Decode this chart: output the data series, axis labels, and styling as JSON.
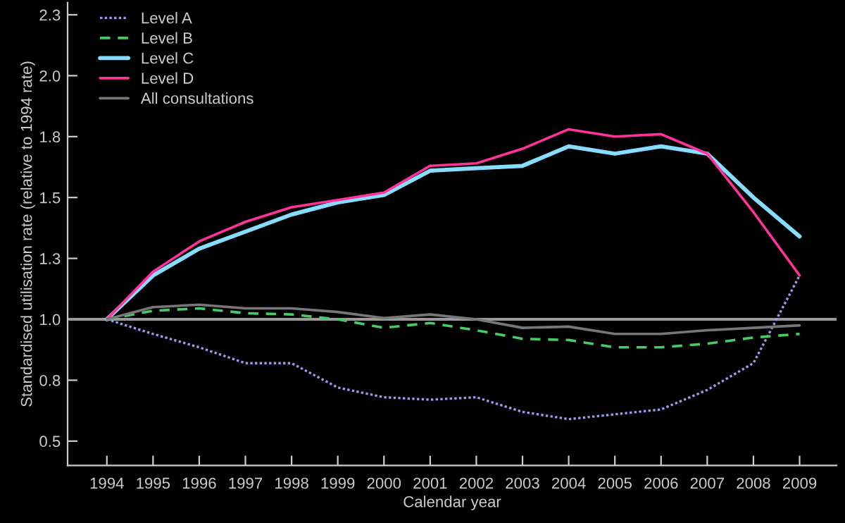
{
  "chart_data": {
    "type": "line",
    "xlabel": "Calendar year",
    "ylabel": "Standardised utilisation rate (relative to 1994 rate)",
    "x": [
      1994,
      1995,
      1996,
      1997,
      1998,
      1999,
      2000,
      2001,
      2002,
      2003,
      2004,
      2005,
      2006,
      2007,
      2008,
      2009
    ],
    "xlim": [
      1993.15,
      2009.8
    ],
    "xticks": [
      1994,
      1995,
      1996,
      1997,
      1998,
      1999,
      2000,
      2001,
      2002,
      2003,
      2004,
      2005,
      2006,
      2007,
      2008,
      2009
    ],
    "ylim": [
      0.4,
      2.3
    ],
    "yticks": [
      0.5,
      {
        "value": 0.75,
        "label": "0.8"
      },
      {
        "value": 1.0,
        "label": "1.0"
      },
      {
        "value": 1.25,
        "label": "1.3"
      },
      1.5,
      {
        "value": 1.75,
        "label": "1.8"
      },
      {
        "value": 2.0,
        "label": "2.0"
      },
      {
        "value": 2.25,
        "label": "2.3"
      }
    ],
    "series": [
      {
        "name": "Level A",
        "color": "#9c9cf0",
        "line_style": "dotted",
        "values": [
          1.0,
          0.94,
          0.885,
          0.82,
          0.82,
          0.72,
          0.68,
          0.67,
          0.68,
          0.62,
          0.59,
          0.61,
          0.63,
          0.71,
          0.82,
          1.18
        ]
      },
      {
        "name": "Level B",
        "color": "#44cc66",
        "line_style": "dashed",
        "values": [
          1.0,
          1.035,
          1.045,
          1.025,
          1.02,
          1.0,
          0.965,
          0.985,
          0.955,
          0.92,
          0.915,
          0.885,
          0.885,
          0.9,
          0.925,
          0.94
        ]
      },
      {
        "name": "Level C",
        "color": "#88ddff",
        "line_style": "solid",
        "values": [
          1.0,
          1.18,
          1.29,
          1.36,
          1.43,
          1.48,
          1.51,
          1.61,
          1.62,
          1.63,
          1.71,
          1.68,
          1.71,
          1.68,
          1.5,
          1.34
        ]
      },
      {
        "name": "Level D",
        "color": "#ff3399",
        "line_style": "solid",
        "values": [
          1.0,
          1.195,
          1.32,
          1.4,
          1.46,
          1.49,
          1.52,
          1.63,
          1.64,
          1.7,
          1.78,
          1.75,
          1.76,
          1.68,
          1.44,
          1.18
        ]
      },
      {
        "name": "All consultations",
        "color": "#777777",
        "line_style": "solid",
        "values": [
          1.0,
          1.05,
          1.06,
          1.045,
          1.045,
          1.03,
          1.005,
          1.02,
          1.0,
          0.965,
          0.97,
          0.94,
          0.94,
          0.955,
          0.965,
          0.975
        ]
      }
    ],
    "ref_lines": [
      {
        "axis": "y",
        "value": 1.0,
        "color": "#999999"
      }
    ],
    "legend": "top left",
    "grid": false
  }
}
